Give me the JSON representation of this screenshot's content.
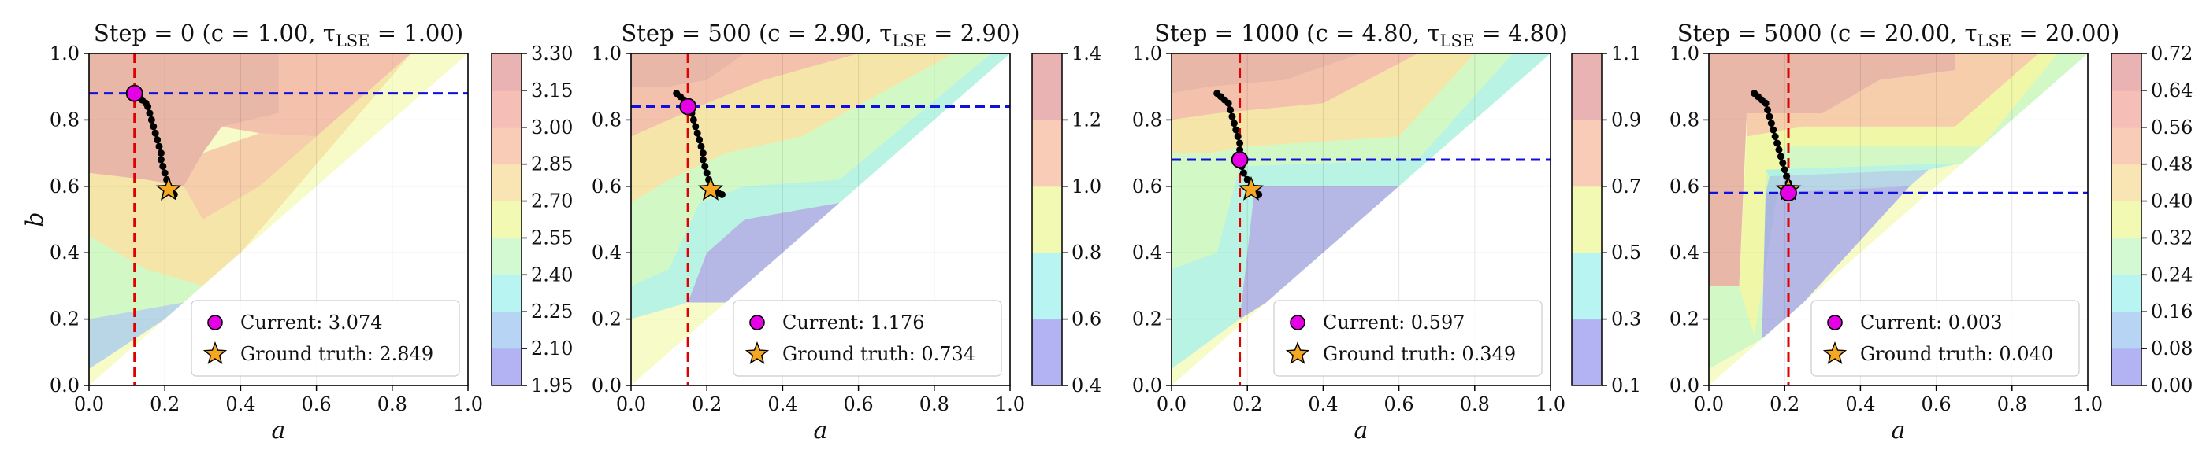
{
  "chart_data": [
    {
      "type": "contour",
      "title": "Step = 0 (c = 1.00, τLSE = 1.00)",
      "xlabel": "a",
      "ylabel": "b",
      "xlim": [
        0.0,
        1.0
      ],
      "ylim": [
        0.0,
        1.0
      ],
      "xticks": [
        "0.0",
        "0.2",
        "0.4",
        "0.6",
        "0.8",
        "1.0"
      ],
      "yticks": [
        "0.0",
        "0.2",
        "0.4",
        "0.6",
        "0.8",
        "1.0"
      ],
      "colorbar_ticks": [
        "1.95",
        "2.10",
        "2.25",
        "2.40",
        "2.55",
        "2.70",
        "2.85",
        "3.00",
        "3.15",
        "3.30"
      ],
      "current": {
        "a": 0.12,
        "b": 0.88,
        "label": "Current: 3.074"
      },
      "ground_truth": {
        "a": 0.21,
        "b": 0.59,
        "label": "Ground truth: 2.849"
      },
      "trajectory": [
        [
          0.12,
          0.88
        ],
        [
          0.13,
          0.87
        ],
        [
          0.14,
          0.86
        ],
        [
          0.15,
          0.85
        ],
        [
          0.155,
          0.84
        ],
        [
          0.16,
          0.82
        ],
        [
          0.165,
          0.8
        ],
        [
          0.17,
          0.78
        ],
        [
          0.175,
          0.76
        ],
        [
          0.18,
          0.74
        ],
        [
          0.185,
          0.72
        ],
        [
          0.19,
          0.7
        ],
        [
          0.19,
          0.68
        ],
        [
          0.195,
          0.66
        ],
        [
          0.2,
          0.64
        ],
        [
          0.205,
          0.62
        ],
        [
          0.21,
          0.6
        ],
        [
          0.215,
          0.59
        ],
        [
          0.22,
          0.58
        ],
        [
          0.225,
          0.575
        ]
      ],
      "grid": true,
      "legend_position": "lower-right"
    },
    {
      "type": "contour",
      "title": "Step = 500 (c = 2.90, τLSE = 2.90)",
      "xlabel": "a",
      "ylabel": "",
      "xlim": [
        0.0,
        1.0
      ],
      "ylim": [
        0.0,
        1.0
      ],
      "xticks": [
        "0.0",
        "0.2",
        "0.4",
        "0.6",
        "0.8",
        "1.0"
      ],
      "yticks": [
        "0.0",
        "0.2",
        "0.4",
        "0.6",
        "0.8",
        "1.0"
      ],
      "colorbar_ticks": [
        "0.4",
        "0.6",
        "0.8",
        "1.0",
        "1.2",
        "1.4"
      ],
      "current": {
        "a": 0.15,
        "b": 0.84,
        "label": "Current: 1.176"
      },
      "ground_truth": {
        "a": 0.21,
        "b": 0.59,
        "label": "Ground truth: 0.734"
      },
      "trajectory": [
        [
          0.12,
          0.88
        ],
        [
          0.13,
          0.87
        ],
        [
          0.14,
          0.86
        ],
        [
          0.15,
          0.84
        ],
        [
          0.16,
          0.82
        ],
        [
          0.165,
          0.8
        ],
        [
          0.17,
          0.78
        ],
        [
          0.175,
          0.76
        ],
        [
          0.18,
          0.74
        ],
        [
          0.185,
          0.72
        ],
        [
          0.19,
          0.7
        ],
        [
          0.19,
          0.68
        ],
        [
          0.195,
          0.66
        ],
        [
          0.2,
          0.64
        ],
        [
          0.205,
          0.62
        ],
        [
          0.21,
          0.6
        ],
        [
          0.22,
          0.59
        ],
        [
          0.23,
          0.58
        ],
        [
          0.24,
          0.575
        ]
      ],
      "grid": true,
      "legend_position": "lower-right"
    },
    {
      "type": "contour",
      "title": "Step = 1000 (c = 4.80, τLSE = 4.80)",
      "xlabel": "a",
      "ylabel": "",
      "xlim": [
        0.0,
        1.0
      ],
      "ylim": [
        0.0,
        1.0
      ],
      "xticks": [
        "0.0",
        "0.2",
        "0.4",
        "0.6",
        "0.8",
        "1.0"
      ],
      "yticks": [
        "0.0",
        "0.2",
        "0.4",
        "0.6",
        "0.8",
        "1.0"
      ],
      "colorbar_ticks": [
        "0.1",
        "0.3",
        "0.5",
        "0.7",
        "0.9",
        "1.1"
      ],
      "current": {
        "a": 0.18,
        "b": 0.68,
        "label": "Current: 0.597"
      },
      "ground_truth": {
        "a": 0.21,
        "b": 0.59,
        "label": "Ground truth: 0.349"
      },
      "trajectory": [
        [
          0.12,
          0.88
        ],
        [
          0.13,
          0.87
        ],
        [
          0.14,
          0.86
        ],
        [
          0.15,
          0.85
        ],
        [
          0.155,
          0.83
        ],
        [
          0.16,
          0.81
        ],
        [
          0.165,
          0.79
        ],
        [
          0.17,
          0.77
        ],
        [
          0.175,
          0.75
        ],
        [
          0.18,
          0.73
        ],
        [
          0.18,
          0.71
        ],
        [
          0.18,
          0.69
        ],
        [
          0.185,
          0.66
        ],
        [
          0.19,
          0.64
        ],
        [
          0.2,
          0.62
        ],
        [
          0.21,
          0.6
        ],
        [
          0.22,
          0.585
        ],
        [
          0.23,
          0.575
        ]
      ],
      "grid": true,
      "legend_position": "lower-right"
    },
    {
      "type": "contour",
      "title": "Step = 5000 (c = 20.00, τLSE = 20.00)",
      "xlabel": "a",
      "ylabel": "",
      "xlim": [
        0.0,
        1.0
      ],
      "ylim": [
        0.0,
        1.0
      ],
      "xticks": [
        "0.0",
        "0.2",
        "0.4",
        "0.6",
        "0.8",
        "1.0"
      ],
      "yticks": [
        "0.0",
        "0.2",
        "0.4",
        "0.6",
        "0.8",
        "1.0"
      ],
      "colorbar_ticks": [
        "0.00",
        "0.08",
        "0.16",
        "0.24",
        "0.32",
        "0.40",
        "0.48",
        "0.56",
        "0.64",
        "0.72"
      ],
      "current": {
        "a": 0.21,
        "b": 0.58,
        "label": "Current: 0.003"
      },
      "ground_truth": {
        "a": 0.21,
        "b": 0.59,
        "label": "Ground truth: 0.040"
      },
      "trajectory": [
        [
          0.12,
          0.88
        ],
        [
          0.13,
          0.87
        ],
        [
          0.14,
          0.86
        ],
        [
          0.15,
          0.85
        ],
        [
          0.155,
          0.83
        ],
        [
          0.16,
          0.81
        ],
        [
          0.165,
          0.79
        ],
        [
          0.17,
          0.77
        ],
        [
          0.175,
          0.75
        ],
        [
          0.18,
          0.73
        ],
        [
          0.185,
          0.71
        ],
        [
          0.19,
          0.69
        ],
        [
          0.195,
          0.67
        ],
        [
          0.2,
          0.65
        ],
        [
          0.205,
          0.63
        ],
        [
          0.21,
          0.61
        ],
        [
          0.21,
          0.6
        ],
        [
          0.215,
          0.59
        ],
        [
          0.21,
          0.58
        ]
      ],
      "grid": true,
      "legend_position": "lower-right"
    }
  ],
  "colors": {
    "current_marker": "#e600e6",
    "ground_truth_marker": "#f5a623",
    "current_a_line": "#e00000",
    "current_b_line": "#1010dd",
    "trajectory": "#000000",
    "levels": [
      "#9a9af0",
      "#9fc6f2",
      "#9ff0ee",
      "#c3f7c3",
      "#eef79a",
      "#f7dc9a",
      "#f7bb9f",
      "#f2a89f",
      "#e39a9a"
    ]
  }
}
